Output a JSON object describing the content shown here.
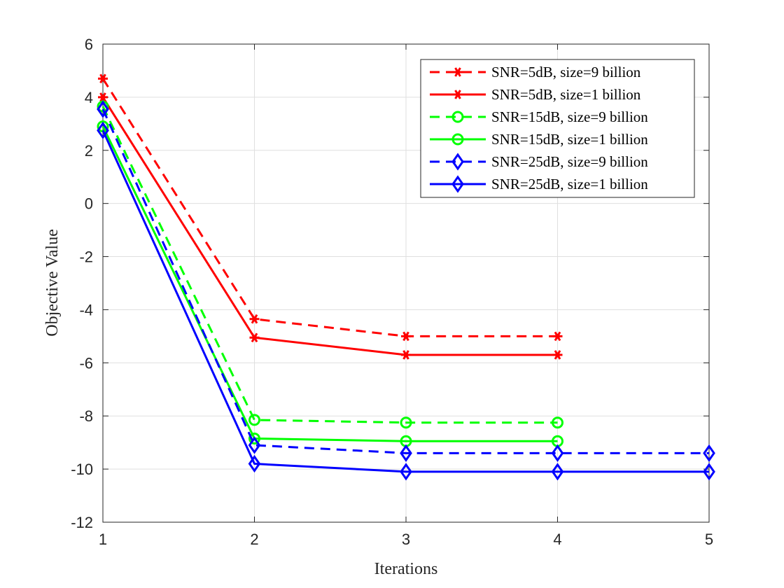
{
  "chart_data": {
    "type": "line",
    "title": "",
    "xlabel": "Iterations",
    "ylabel": "Objective Value",
    "xlim": [
      1,
      5
    ],
    "ylim": [
      -12,
      6
    ],
    "xticks": [
      1,
      2,
      3,
      4,
      5
    ],
    "yticks": [
      -12,
      -10,
      -8,
      -6,
      -4,
      -2,
      0,
      2,
      4,
      6
    ],
    "grid": true,
    "legend_position": "top-right",
    "series": [
      {
        "name": "SNR=5dB, size=9 billion",
        "color": "#ff0000",
        "dash": "dashed",
        "marker": "asterisk",
        "x": [
          1,
          2,
          3,
          4
        ],
        "y": [
          4.7,
          -4.35,
          -5.0,
          -5.0
        ]
      },
      {
        "name": "SNR=5dB, size=1 billion",
        "color": "#ff0000",
        "dash": "solid",
        "marker": "asterisk",
        "x": [
          1,
          2,
          3,
          4
        ],
        "y": [
          4.0,
          -5.05,
          -5.7,
          -5.7
        ]
      },
      {
        "name": "SNR=15dB, size=9 billion",
        "color": "#00ff00",
        "dash": "dashed",
        "marker": "circle",
        "x": [
          1,
          2,
          3,
          4
        ],
        "y": [
          3.65,
          -8.15,
          -8.25,
          -8.25
        ]
      },
      {
        "name": "SNR=15dB, size=1 billion",
        "color": "#00ff00",
        "dash": "solid",
        "marker": "circle",
        "x": [
          1,
          2,
          3,
          4
        ],
        "y": [
          2.9,
          -8.85,
          -8.95,
          -8.95
        ]
      },
      {
        "name": "SNR=25dB, size=9 billion",
        "color": "#0000ff",
        "dash": "dashed",
        "marker": "diamond",
        "x": [
          1,
          2,
          3,
          4,
          5
        ],
        "y": [
          3.55,
          -9.1,
          -9.4,
          -9.4,
          -9.4
        ]
      },
      {
        "name": "SNR=25dB, size=1 billion",
        "color": "#0000ff",
        "dash": "solid",
        "marker": "diamond",
        "x": [
          1,
          2,
          3,
          4,
          5
        ],
        "y": [
          2.75,
          -9.8,
          -10.1,
          -10.1,
          -10.1
        ]
      }
    ]
  }
}
